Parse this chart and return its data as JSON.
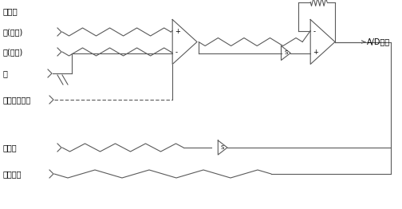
{
  "bg_color": "#ffffff",
  "line_color": "#5a5a5a",
  "text_color": "#000000",
  "figsize": [
    5.04,
    2.62
  ],
  "dpi": 100,
  "labels": {
    "title": "输入端",
    "red": "红(高压)",
    "black": "黑(低压)",
    "green": "绿",
    "pre_out": "前置放大输出",
    "common": "公共端",
    "low_out": "低压输出",
    "ad": "A/D转换"
  }
}
